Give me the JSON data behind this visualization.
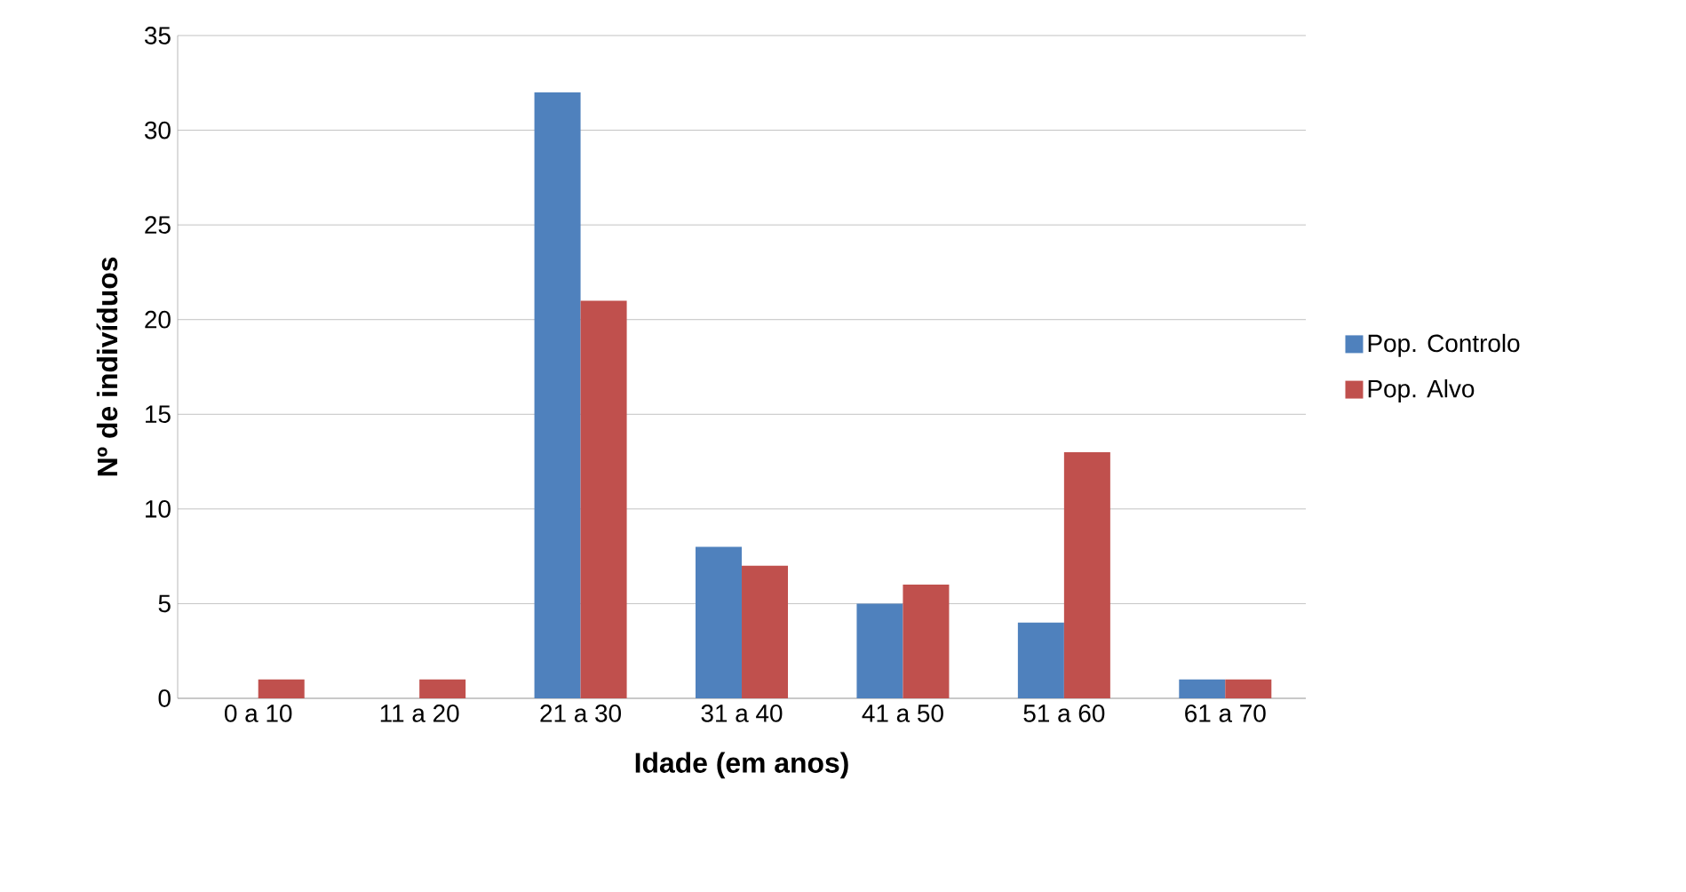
{
  "chart_data": {
    "type": "bar",
    "xlabel": "Idade (em anos)",
    "ylabel": "Nº de indivíduos",
    "categories": [
      "0 a 10",
      "11 a 20",
      "21 a 30",
      "31 a 40",
      "41 a 50",
      "51 a 60",
      "61 a 70"
    ],
    "series": [
      {
        "name": "Pop. Controlo",
        "color": "#4f81bd",
        "values": [
          0,
          0,
          32,
          8,
          5,
          4,
          1
        ]
      },
      {
        "name": "Pop. Alvo",
        "color": "#c0504d",
        "values": [
          1,
          1,
          21,
          7,
          6,
          13,
          1
        ]
      }
    ],
    "ylim": [
      0,
      35
    ],
    "yticks": [
      0,
      5,
      10,
      15,
      20,
      25,
      30,
      35
    ],
    "grid": "y",
    "legend": "right"
  }
}
